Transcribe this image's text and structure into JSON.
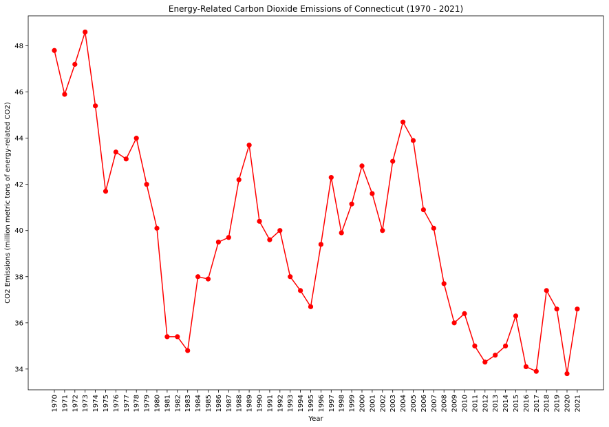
{
  "chart_data": {
    "type": "line",
    "title": "Energy-Related Carbon Dioxide Emissions of Connecticut (1970 - 2021)",
    "xlabel": "Year",
    "ylabel": "CO2 Emissions (million metric tons of energy-related CO2)",
    "ylim": [
      33.1,
      49.3
    ],
    "y_ticks": [
      34,
      36,
      38,
      40,
      42,
      44,
      46,
      48
    ],
    "grid": false,
    "marker": "circle",
    "line_color": "#ff0000",
    "x": [
      "1970",
      "1971",
      "1972",
      "1973",
      "1974",
      "1975",
      "1976",
      "1977",
      "1978",
      "1979",
      "1980",
      "1981",
      "1982",
      "1983",
      "1984",
      "1985",
      "1986",
      "1987",
      "1988",
      "1989",
      "1990",
      "1991",
      "1992",
      "1993",
      "1994",
      "1995",
      "1996",
      "1997",
      "1998",
      "1999",
      "2000",
      "2001",
      "2002",
      "2003",
      "2004",
      "2005",
      "2006",
      "2007",
      "2008",
      "2009",
      "2010",
      "2011",
      "2012",
      "2013",
      "2014",
      "2015",
      "2016",
      "2017",
      "2018",
      "2019",
      "2020",
      "2021"
    ],
    "series": [
      {
        "values": [
          47.8,
          45.9,
          47.2,
          48.6,
          45.4,
          41.7,
          43.4,
          43.1,
          44.0,
          42.0,
          40.1,
          35.4,
          35.4,
          34.8,
          38.0,
          37.9,
          39.5,
          39.7,
          42.2,
          43.7,
          40.4,
          39.6,
          40.0,
          38.0,
          37.4,
          36.7,
          39.4,
          42.3,
          39.9,
          41.15,
          42.8,
          41.6,
          40.0,
          43.0,
          44.7,
          43.9,
          40.9,
          40.1,
          37.7,
          36.0,
          36.4,
          35.0,
          34.3,
          34.6,
          35.0,
          36.3,
          34.1,
          33.9,
          37.4,
          36.6,
          33.8,
          36.6
        ]
      }
    ]
  }
}
